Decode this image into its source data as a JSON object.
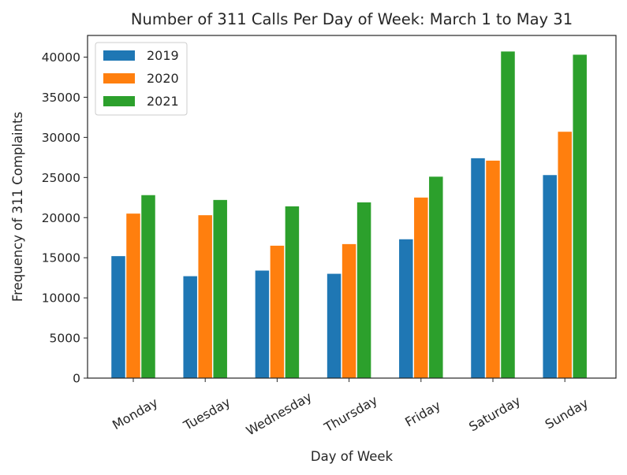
{
  "chart_data": {
    "type": "bar",
    "title": "Number of 311 Calls Per Day of Week: March 1 to May 31",
    "xlabel": "Day of Week",
    "ylabel": "Frequency of 311 Complaints",
    "categories": [
      "Monday",
      "Tuesday",
      "Wednesday",
      "Thursday",
      "Friday",
      "Saturday",
      "Sunday"
    ],
    "series": [
      {
        "name": "2019",
        "color": "#1f77b4",
        "values": [
          15200,
          12700,
          13400,
          13000,
          17300,
          27400,
          25300
        ]
      },
      {
        "name": "2020",
        "color": "#ff7f0e",
        "values": [
          20500,
          20300,
          16500,
          16700,
          22500,
          27100,
          30700
        ]
      },
      {
        "name": "2021",
        "color": "#2ca02c",
        "values": [
          22800,
          22200,
          21400,
          21900,
          25100,
          40700,
          40300
        ]
      }
    ],
    "ylim": [
      0,
      42700
    ],
    "yticks": [
      0,
      5000,
      10000,
      15000,
      20000,
      25000,
      30000,
      35000,
      40000
    ],
    "grid": false,
    "legend_position": "top-left"
  }
}
